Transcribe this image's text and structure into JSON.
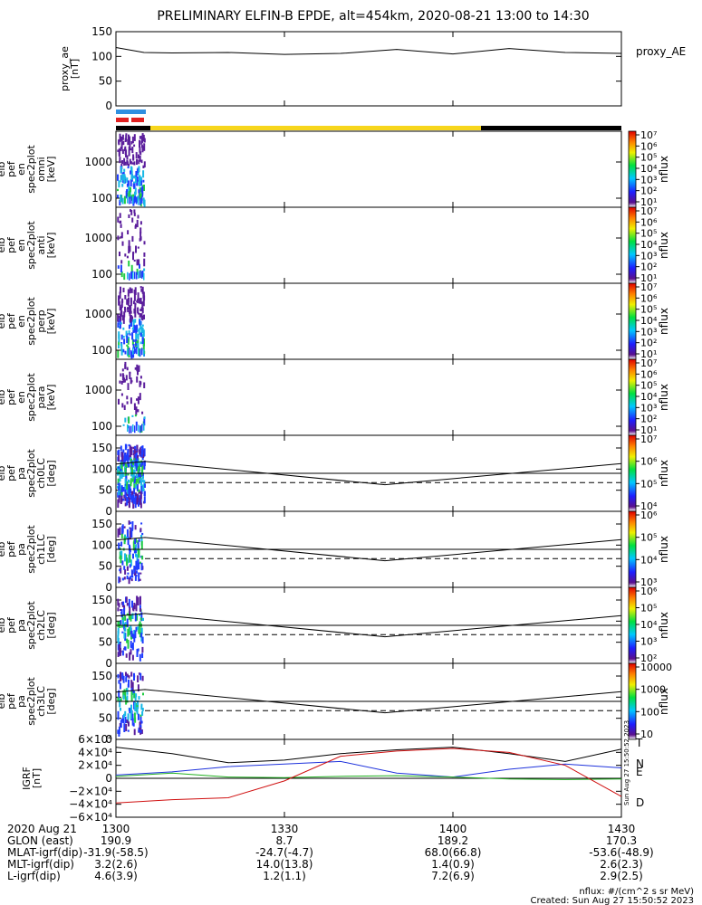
{
  "title": "PRELIMINARY ELFIN-B EPDE, alt=454km, 2020-08-21 13:00 to 14:30",
  "colors": {
    "flag_blue": "#2f8fe0",
    "flag_red": "#e02020",
    "bar_yellow": "#f7d61c",
    "bar_black": "#000000",
    "spec_purple": "#5b1e9c",
    "spec_blue": "#1e3cff",
    "spec_cyan": "#1ab8e6",
    "spec_green": "#22cc44",
    "grf_n": "#1e32dc",
    "grf_e": "#20b020",
    "grf_d": "#d01010",
    "grf_t": "#000000"
  },
  "proxy_ae": {
    "ylabel": [
      "proxy_ae",
      "[nT]"
    ],
    "yticks": [
      "0",
      "50",
      "100",
      "150"
    ],
    "legend": "proxy_AE"
  },
  "spec_panels": [
    {
      "ylabel": [
        "elb",
        "pef",
        "en",
        "spec2plot",
        "omni",
        "[keV]"
      ],
      "yticks": [
        "100",
        "1000"
      ]
    },
    {
      "ylabel": [
        "elb",
        "pef",
        "en",
        "spec2plot",
        "anti",
        "[keV]"
      ],
      "yticks": [
        "100",
        "1000"
      ]
    },
    {
      "ylabel": [
        "elb",
        "pef",
        "en",
        "spec2plot",
        "perp",
        "[keV]"
      ],
      "yticks": [
        "100",
        "1000"
      ]
    },
    {
      "ylabel": [
        "elb",
        "pef",
        "en",
        "spec2plot",
        "para",
        "[keV]"
      ],
      "yticks": [
        "100",
        "1000"
      ]
    }
  ],
  "pa_panels": [
    {
      "ylabel": [
        "elb",
        "pef",
        "pa",
        "spec2plot",
        "ch0LC",
        "[deg]"
      ],
      "yticks": [
        "0",
        "50",
        "100",
        "150"
      ]
    },
    {
      "ylabel": [
        "elb",
        "pef",
        "pa",
        "spec2plot",
        "ch1LC",
        "[deg]"
      ],
      "yticks": [
        "0",
        "50",
        "100",
        "150"
      ]
    },
    {
      "ylabel": [
        "elb",
        "pef",
        "pa",
        "spec2plot",
        "ch2LC",
        "[deg]"
      ],
      "yticks": [
        "0",
        "50",
        "100",
        "150"
      ]
    },
    {
      "ylabel": [
        "elb",
        "pef",
        "pa",
        "spec2plot",
        "ch3LC",
        "[deg]"
      ],
      "yticks": [
        "0",
        "50",
        "100",
        "150"
      ]
    }
  ],
  "colorbars": [
    {
      "label": "nflux",
      "ticks": [
        "10⁷",
        "10⁶",
        "10⁵",
        "10⁴",
        "10³",
        "10²",
        "10¹"
      ]
    },
    {
      "label": "nflux",
      "ticks": [
        "10⁷",
        "10⁶",
        "10⁵",
        "10⁴",
        "10³",
        "10²",
        "10¹"
      ]
    },
    {
      "label": "nflux",
      "ticks": [
        "10⁷",
        "10⁶",
        "10⁵",
        "10⁴",
        "10³",
        "10²",
        "10¹"
      ]
    },
    {
      "label": "nflux",
      "ticks": [
        "10⁷",
        "10⁶",
        "10⁵",
        "10⁴",
        "10³",
        "10²",
        "10¹"
      ]
    },
    {
      "label": "nflux",
      "ticks": [
        "10⁷",
        "10⁶",
        "10⁵",
        "10⁴"
      ]
    },
    {
      "label": "nflux",
      "ticks": [
        "10⁶",
        "10⁵",
        "10⁴",
        "10³"
      ]
    },
    {
      "label": "nflux",
      "ticks": [
        "10⁶",
        "10⁵",
        "10⁴",
        "10³",
        "10²"
      ]
    },
    {
      "label": "nflux",
      "ticks": [
        "10000",
        "1000",
        "100",
        "10"
      ]
    }
  ],
  "igrf": {
    "ylabel": [
      "IGRF",
      "[nT]"
    ],
    "yticks": [
      "6×10⁴",
      "4×10⁴",
      "2×10⁴",
      "0",
      "−2×10⁴",
      "−4×10⁴",
      "−6×10⁴"
    ],
    "legend": [
      "T",
      "N",
      "E",
      "D"
    ],
    "stamp": "Sun Aug 27 15:50:52 2023"
  },
  "footer": {
    "rows": [
      {
        "label": "2020 Aug 21",
        "values": [
          "1300",
          "1330",
          "1400",
          "1430"
        ]
      },
      {
        "label": "GLON (east)",
        "values": [
          "190.9",
          "8.7",
          "189.2",
          "170.3"
        ]
      },
      {
        "label": "MLAT-igrf(dip)",
        "values": [
          "-31.9(-58.5)",
          "-24.7(-4.7)",
          "68.0(66.8)",
          "-53.6(-48.9)"
        ]
      },
      {
        "label": "MLT-igrf(dip)",
        "values": [
          "3.2(2.6)",
          "14.0(13.8)",
          "1.4(0.9)",
          "2.6(2.3)"
        ]
      },
      {
        "label": "L-igrf(dip)",
        "values": [
          "4.6(3.9)",
          "1.2(1.1)",
          "7.2(6.9)",
          "2.9(2.5)"
        ]
      }
    ],
    "units_note": "nflux: #/(cm^2 s sr MeV)",
    "created": "Created: Sun Aug 27 15:50:52 2023"
  },
  "chart_data": {
    "type": "line",
    "title": "PRELIMINARY ELFIN-B EPDE, alt=454km, 2020-08-21 13:00 to 14:30",
    "xlabel": "2020 Aug 21",
    "xlim": [
      1300,
      1430
    ],
    "xticks": [
      "1300",
      "1330",
      "1400",
      "1430"
    ],
    "series": [
      {
        "name": "proxy_AE",
        "x": [
          1300,
          1305,
          1310,
          1320,
          1330,
          1340,
          1350,
          1400,
          1410,
          1420,
          1430
        ],
        "values": [
          118,
          108,
          107,
          108,
          104,
          106,
          114,
          105,
          116,
          108,
          106
        ]
      }
    ],
    "ylim": [
      0,
      150
    ],
    "igrf_series": [
      {
        "name": "T",
        "x": [
          1300,
          1310,
          1320,
          1330,
          1340,
          1350,
          1400,
          1410,
          1420,
          1430
        ],
        "values": [
          48000,
          38000,
          24000,
          28000,
          38000,
          44000,
          48000,
          38000,
          26000,
          45000
        ]
      },
      {
        "name": "N",
        "x": [
          1300,
          1310,
          1320,
          1330,
          1340,
          1350,
          1400,
          1410,
          1420,
          1430
        ],
        "values": [
          5000,
          10000,
          18000,
          22000,
          26000,
          8000,
          2000,
          14000,
          22000,
          16000
        ]
      },
      {
        "name": "E",
        "x": [
          1300,
          1310,
          1320,
          1330,
          1340,
          1350,
          1400,
          1410,
          1420,
          1430
        ],
        "values": [
          3000,
          8000,
          2000,
          1000,
          3000,
          4000,
          2000,
          -1000,
          -2000,
          -1000
        ]
      },
      {
        "name": "D",
        "x": [
          1300,
          1310,
          1320,
          1330,
          1340,
          1350,
          1400,
          1410,
          1420,
          1430
        ],
        "values": [
          -38000,
          -33000,
          -30000,
          -4000,
          34000,
          42000,
          46000,
          40000,
          20000,
          -28000
        ]
      }
    ],
    "igrf_ylim": [
      -60000,
      60000
    ]
  }
}
